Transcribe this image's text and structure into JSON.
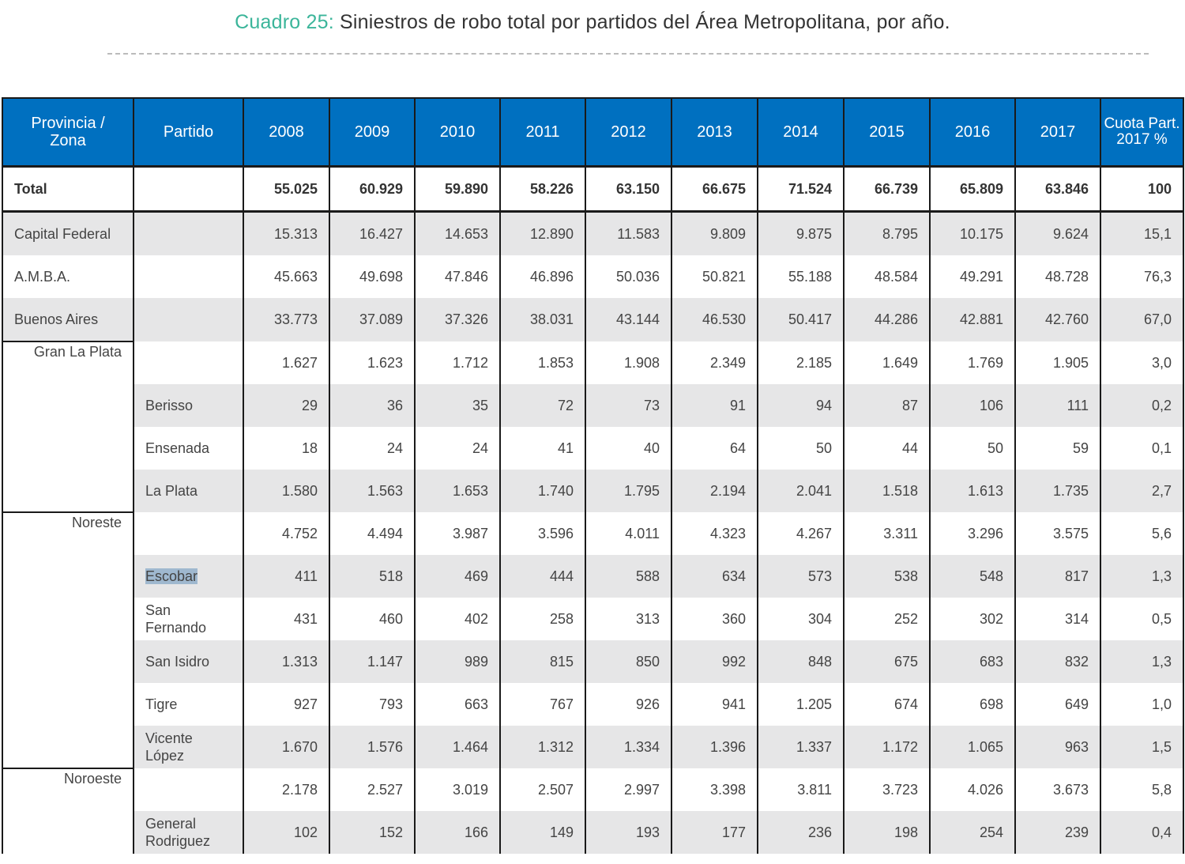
{
  "title": {
    "lead": "Cuadro 25:",
    "text": " Siniestros de robo total por partidos del Área Metropolitana, por año."
  },
  "headers": [
    "Provincia / Zona",
    "Partido",
    "2008",
    "2009",
    "2010",
    "2011",
    "2012",
    "2013",
    "2014",
    "2015",
    "2016",
    "2017",
    "Cuota Part. 2017 %"
  ],
  "total": {
    "label": "Total",
    "values": [
      "55.025",
      "60.929",
      "59.890",
      "58.226",
      "63.150",
      "66.675",
      "71.524",
      "66.739",
      "65.809",
      "63.846",
      "100"
    ]
  },
  "summary": [
    {
      "label": "Capital Federal",
      "values": [
        "15.313",
        "16.427",
        "14.653",
        "12.890",
        "11.583",
        "9.809",
        "9.875",
        "8.795",
        "10.175",
        "9.624",
        "15,1"
      ]
    },
    {
      "label": "A.M.B.A.",
      "values": [
        "45.663",
        "49.698",
        "47.846",
        "46.896",
        "50.036",
        "50.821",
        "55.188",
        "48.584",
        "49.291",
        "48.728",
        "76,3"
      ]
    },
    {
      "label": "Buenos Aires",
      "values": [
        "33.773",
        "37.089",
        "37.326",
        "38.031",
        "43.144",
        "46.530",
        "50.417",
        "44.286",
        "42.881",
        "42.760",
        "67,0"
      ]
    }
  ],
  "zones": [
    {
      "label": "Gran La Plata",
      "values": [
        "1.627",
        "1.623",
        "1.712",
        "1.853",
        "1.908",
        "2.349",
        "2.185",
        "1.649",
        "1.769",
        "1.905",
        "3,0"
      ],
      "partidos": [
        {
          "label": "Berisso",
          "values": [
            "29",
            "36",
            "35",
            "72",
            "73",
            "91",
            "94",
            "87",
            "106",
            "111",
            "0,2"
          ]
        },
        {
          "label": "Ensenada",
          "values": [
            "18",
            "24",
            "24",
            "41",
            "40",
            "64",
            "50",
            "44",
            "50",
            "59",
            "0,1"
          ]
        },
        {
          "label": "La Plata",
          "values": [
            "1.580",
            "1.563",
            "1.653",
            "1.740",
            "1.795",
            "2.194",
            "2.041",
            "1.518",
            "1.613",
            "1.735",
            "2,7"
          ]
        }
      ]
    },
    {
      "label": "Noreste",
      "values": [
        "4.752",
        "4.494",
        "3.987",
        "3.596",
        "4.011",
        "4.323",
        "4.267",
        "3.311",
        "3.296",
        "3.575",
        "5,6"
      ],
      "partidos": [
        {
          "label": "Escobar",
          "selected": true,
          "values": [
            "411",
            "518",
            "469",
            "444",
            "588",
            "634",
            "573",
            "538",
            "548",
            "817",
            "1,3"
          ]
        },
        {
          "label": "San Fernando",
          "values": [
            "431",
            "460",
            "402",
            "258",
            "313",
            "360",
            "304",
            "252",
            "302",
            "314",
            "0,5"
          ]
        },
        {
          "label": "San Isidro",
          "values": [
            "1.313",
            "1.147",
            "989",
            "815",
            "850",
            "992",
            "848",
            "675",
            "683",
            "832",
            "1,3"
          ]
        },
        {
          "label": "Tigre",
          "values": [
            "927",
            "793",
            "663",
            "767",
            "926",
            "941",
            "1.205",
            "674",
            "698",
            "649",
            "1,0"
          ]
        },
        {
          "label": "Vicente López",
          "values": [
            "1.670",
            "1.576",
            "1.464",
            "1.312",
            "1.334",
            "1.396",
            "1.337",
            "1.172",
            "1.065",
            "963",
            "1,5"
          ]
        }
      ]
    },
    {
      "label": "Noroeste",
      "values": [
        "2.178",
        "2.527",
        "3.019",
        "2.507",
        "2.997",
        "3.398",
        "3.811",
        "3.723",
        "4.026",
        "3.673",
        "5,8"
      ],
      "partidos": [
        {
          "label": "General Rodriguez",
          "values": [
            "102",
            "152",
            "166",
            "149",
            "193",
            "177",
            "236",
            "198",
            "254",
            "239",
            "0,4"
          ]
        }
      ]
    }
  ]
}
